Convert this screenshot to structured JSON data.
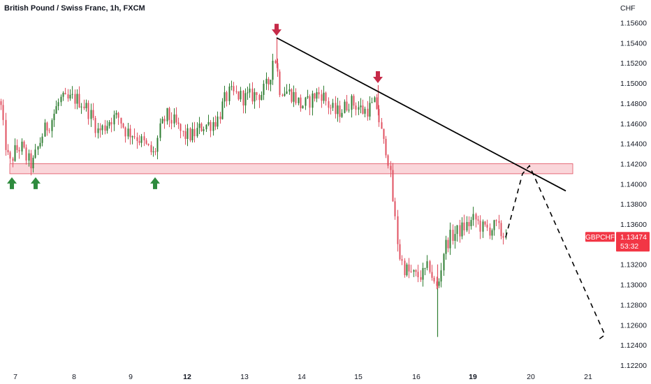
{
  "chart_title": "British Pound / Swiss Franc, 1h, FXCM",
  "chart_data": {
    "type": "candlestick",
    "title": "British Pound / Swiss Franc, 1h, FXCM",
    "symbol": "GBPCHF",
    "last_price": "1.13474",
    "countdown": "53:32",
    "y_axis_unit": "CHF",
    "y_ticks": [
      1.122,
      1.124,
      1.126,
      1.128,
      1.13,
      1.132,
      1.136,
      1.138,
      1.14,
      1.142,
      1.144,
      1.146,
      1.148,
      1.15,
      1.152,
      1.154,
      1.156
    ],
    "y_tick_labels": [
      "1.12200",
      "1.12400",
      "1.12600",
      "1.12800",
      "1.13000",
      "1.13200",
      "1.13600",
      "1.13800",
      "1.14000",
      "1.14200",
      "1.14400",
      "1.14600",
      "1.14800",
      "1.15000",
      "1.15200",
      "1.15400",
      "1.15600"
    ],
    "ylim": [
      1.122,
      1.157
    ],
    "x_tick_labels": [
      {
        "label": "7",
        "bold": false
      },
      {
        "label": "8",
        "bold": false
      },
      {
        "label": "9",
        "bold": false
      },
      {
        "label": "12",
        "bold": true
      },
      {
        "label": "13",
        "bold": false
      },
      {
        "label": "14",
        "bold": false
      },
      {
        "label": "15",
        "bold": false
      },
      {
        "label": "16",
        "bold": false
      },
      {
        "label": "19",
        "bold": true
      },
      {
        "label": "20",
        "bold": false
      },
      {
        "label": "21",
        "bold": false
      }
    ],
    "price_path": [
      [
        0,
        1.1482
      ],
      [
        6,
        1.1445
      ],
      [
        13,
        1.1418
      ],
      [
        20,
        1.1432
      ],
      [
        30,
        1.1437
      ],
      [
        38,
        1.1425
      ],
      [
        46,
        1.1418
      ],
      [
        52,
        1.1432
      ],
      [
        62,
        1.1452
      ],
      [
        72,
        1.1462
      ],
      [
        80,
        1.1475
      ],
      [
        86,
        1.1484
      ],
      [
        95,
        1.1482
      ],
      [
        105,
        1.1485
      ],
      [
        115,
        1.1482
      ],
      [
        125,
        1.1474
      ],
      [
        133,
        1.1464
      ],
      [
        140,
        1.1452
      ],
      [
        148,
        1.1456
      ],
      [
        158,
        1.1465
      ],
      [
        170,
        1.1466
      ],
      [
        180,
        1.1452
      ],
      [
        190,
        1.145
      ],
      [
        200,
        1.1444
      ],
      [
        210,
        1.1436
      ],
      [
        220,
        1.1428
      ],
      [
        228,
        1.1452
      ],
      [
        238,
        1.1468
      ],
      [
        250,
        1.146
      ],
      [
        262,
        1.1448
      ],
      [
        275,
        1.1448
      ],
      [
        290,
        1.1458
      ],
      [
        302,
        1.146
      ],
      [
        312,
        1.1465
      ],
      [
        320,
        1.1482
      ],
      [
        328,
        1.149
      ],
      [
        340,
        1.1488
      ],
      [
        350,
        1.1485
      ],
      [
        362,
        1.1488
      ],
      [
        375,
        1.149
      ],
      [
        385,
        1.1502
      ],
      [
        392,
        1.153
      ],
      [
        396,
        1.1515
      ],
      [
        400,
        1.1495
      ],
      [
        410,
        1.1492
      ],
      [
        420,
        1.1488
      ],
      [
        430,
        1.1478
      ],
      [
        440,
        1.148
      ],
      [
        450,
        1.1488
      ],
      [
        460,
        1.149
      ],
      [
        470,
        1.1478
      ],
      [
        480,
        1.147
      ],
      [
        490,
        1.1474
      ],
      [
        500,
        1.1482
      ],
      [
        510,
        1.1478
      ],
      [
        520,
        1.1472
      ],
      [
        530,
        1.1476
      ],
      [
        538,
        1.148
      ],
      [
        543,
        1.146
      ],
      [
        548,
        1.144
      ],
      [
        553,
        1.1435
      ],
      [
        557,
        1.1418
      ],
      [
        561,
        1.139
      ],
      [
        564,
        1.1372
      ],
      [
        567,
        1.1352
      ],
      [
        571,
        1.133
      ],
      [
        577,
        1.1318
      ],
      [
        585,
        1.1312
      ],
      [
        595,
        1.1308
      ],
      [
        605,
        1.131
      ],
      [
        615,
        1.1318
      ],
      [
        622,
        1.1298
      ],
      [
        626,
        1.1296
      ],
      [
        630,
        1.1312
      ],
      [
        635,
        1.1335
      ],
      [
        642,
        1.1345
      ],
      [
        650,
        1.135
      ],
      [
        660,
        1.1355
      ],
      [
        670,
        1.136
      ],
      [
        680,
        1.1365
      ],
      [
        690,
        1.1356
      ],
      [
        700,
        1.1355
      ],
      [
        710,
        1.1358
      ],
      [
        718,
        1.135
      ],
      [
        724,
        1.1347
      ]
    ],
    "spikes": [
      {
        "x": 396,
        "high": 1.1545
      },
      {
        "x": 626,
        "high": 1.132,
        "low": 1.1248
      },
      {
        "x": 541,
        "high": 1.1498
      }
    ],
    "support_zone": {
      "low": 1.141,
      "high": 1.142,
      "x_start": 14,
      "x_end": 820
    },
    "resistance_line": {
      "start": [
        396,
        1.1545
      ],
      "end": [
        810,
        1.1393
      ]
    },
    "projection_path": [
      [
        724,
        1.1347
      ],
      [
        748,
        1.141
      ],
      [
        758,
        1.1418
      ],
      [
        866,
        1.125
      ],
      [
        858,
        1.1246
      ]
    ],
    "markers": [
      {
        "name": "down-arrow-marker",
        "x": 396,
        "price": 1.1545,
        "direction": "down",
        "color": "#c62a48"
      },
      {
        "name": "down-arrow-marker",
        "x": 541,
        "price": 1.1498,
        "direction": "down",
        "color": "#c62a48"
      },
      {
        "name": "up-arrow-marker",
        "x": 17,
        "price": 1.141,
        "direction": "up",
        "color": "#2e8b3e"
      },
      {
        "name": "up-arrow-marker",
        "x": 51,
        "price": 1.141,
        "direction": "up",
        "color": "#2e8b3e"
      },
      {
        "name": "up-arrow-marker",
        "x": 222,
        "price": 1.141,
        "direction": "up",
        "color": "#2e8b3e"
      }
    ],
    "colors": {
      "up_candle": "#2e7d32",
      "down_candle": "#e05060",
      "zone_fill": "#f8c8cd",
      "zone_border": "#e05060",
      "price_badge": "#f23645",
      "trendline": "#000000"
    }
  }
}
